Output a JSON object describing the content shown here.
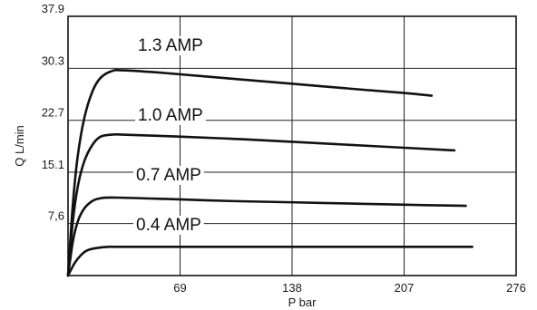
{
  "chart_data": {
    "type": "line",
    "xlabel": "P bar",
    "ylabel": "Q L/min",
    "xlim": [
      0,
      276
    ],
    "ylim": [
      0,
      37.9
    ],
    "x_ticks": [
      "69",
      "138",
      "207",
      "276"
    ],
    "y_ticks": [
      "7,6",
      "15.1",
      "22.7",
      "30.3",
      "37.9"
    ],
    "grid": true,
    "series": [
      {
        "name": "1.3 AMP",
        "points": [
          [
            0,
            0
          ],
          [
            3,
            10.5
          ],
          [
            6,
            17.5
          ],
          [
            10,
            23.0
          ],
          [
            15,
            26.9
          ],
          [
            20,
            28.9
          ],
          [
            27,
            29.9
          ],
          [
            34,
            30.0
          ],
          [
            60,
            29.6
          ],
          [
            100,
            28.8
          ],
          [
            140,
            28.0
          ],
          [
            180,
            27.2
          ],
          [
            207,
            26.7
          ],
          [
            224,
            26.3
          ]
        ]
      },
      {
        "name": "1.0 AMP",
        "points": [
          [
            0,
            0
          ],
          [
            3,
            8.0
          ],
          [
            6,
            13.0
          ],
          [
            10,
            16.7
          ],
          [
            15,
            19.1
          ],
          [
            20,
            20.3
          ],
          [
            27,
            20.6
          ],
          [
            34,
            20.6
          ],
          [
            70,
            20.3
          ],
          [
            110,
            19.9
          ],
          [
            150,
            19.4
          ],
          [
            190,
            18.9
          ],
          [
            238,
            18.3
          ]
        ]
      },
      {
        "name": "0.7 AMP",
        "points": [
          [
            0,
            0
          ],
          [
            3,
            5.0
          ],
          [
            6,
            7.9
          ],
          [
            10,
            9.8
          ],
          [
            15,
            10.9
          ],
          [
            20,
            11.3
          ],
          [
            28,
            11.4
          ],
          [
            60,
            11.2
          ],
          [
            100,
            10.9
          ],
          [
            140,
            10.7
          ],
          [
            180,
            10.5
          ],
          [
            220,
            10.3
          ],
          [
            245,
            10.2
          ]
        ]
      },
      {
        "name": "0.4 AMP",
        "points": [
          [
            0,
            0
          ],
          [
            4,
            1.8
          ],
          [
            8,
            3.0
          ],
          [
            12,
            3.7
          ],
          [
            17,
            4.0
          ],
          [
            25,
            4.2
          ],
          [
            35,
            4.2
          ],
          [
            100,
            4.2
          ],
          [
            180,
            4.2
          ],
          [
            249,
            4.2
          ]
        ]
      }
    ]
  }
}
